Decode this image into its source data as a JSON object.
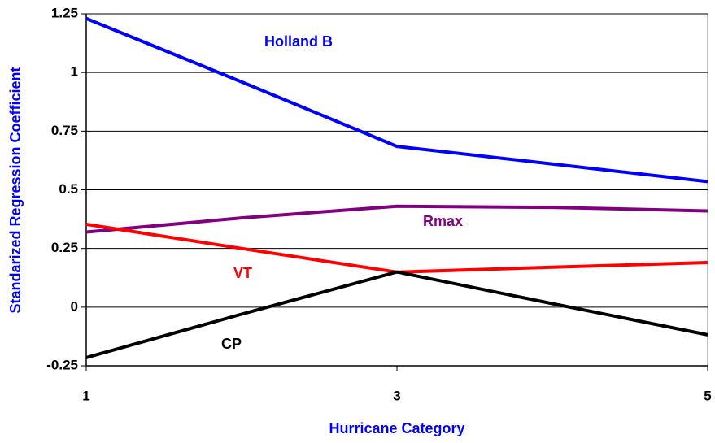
{
  "chart_data": {
    "type": "line",
    "x_label": "Hurricane Category",
    "y_label": "Standarized Regression Coefficient",
    "x": [
      1,
      2,
      3,
      4,
      5
    ],
    "series": [
      {
        "name": "Holland B",
        "color": "#0000ff",
        "values": [
          1.23,
          0.96,
          0.685,
          0.61,
          0.535
        ]
      },
      {
        "name": "Rmax",
        "color": "#800080",
        "values": [
          0.32,
          0.38,
          0.43,
          0.425,
          0.41
        ]
      },
      {
        "name": "VT",
        "color": "#ff0000",
        "values": [
          0.353,
          0.25,
          0.149,
          0.17,
          0.19
        ]
      },
      {
        "name": "CP",
        "color": "#000000",
        "values": [
          -0.215,
          -0.03,
          0.15,
          0.015,
          -0.118
        ]
      }
    ],
    "xlim": [
      1,
      5
    ],
    "xticks": [
      1,
      3,
      5
    ],
    "ylim": [
      -0.25,
      1.25
    ],
    "yticks": [
      -0.25,
      0,
      0.25,
      0.5,
      0.75,
      1,
      1.25
    ],
    "grid": true
  }
}
